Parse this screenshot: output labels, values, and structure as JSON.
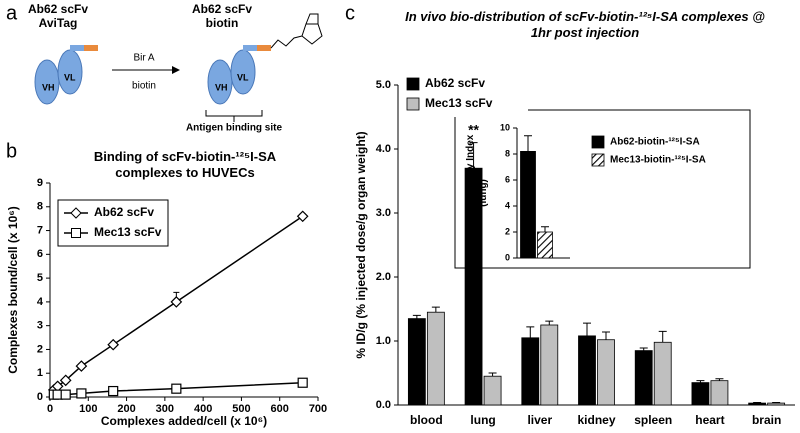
{
  "panel_labels": [
    "a",
    "b",
    "c"
  ],
  "diagram": {
    "left_label": "Ab62 scFv AviTag",
    "right_label": "Ab62 scFv biotin",
    "enzyme": "Bir A",
    "substrate": "biotin",
    "vh": "VH",
    "vl": "VL",
    "vh2": "VH",
    "vl2": "VL",
    "site": "Antigen binding site"
  },
  "chart_data": [
    {
      "type": "line",
      "title": "Binding of scFv-biotin-¹²⁵I-SA complexes to HUVECs",
      "xlabel": "Complexes added/cell (x 10⁶)",
      "ylabel": "Complexes bound/cell (x 10⁶)",
      "x": [
        10,
        20,
        41,
        82,
        165,
        330,
        660
      ],
      "series": [
        {
          "name": "Ab62 scFv",
          "color": "#000000",
          "marker": "diamond",
          "values": [
            0.3,
            0.45,
            0.7,
            1.3,
            2.2,
            4.0,
            7.6
          ],
          "errors": [
            0.05,
            0.05,
            0.05,
            0.1,
            0.1,
            0.4,
            0.1
          ]
        },
        {
          "name": "Mec13 scFv",
          "color": "#000000",
          "marker": "square",
          "values": [
            0.1,
            0.1,
            0.1,
            0.15,
            0.25,
            0.35,
            0.6
          ],
          "errors": [
            0.02,
            0.02,
            0.02,
            0.03,
            0.05,
            0.05,
            0.05
          ]
        }
      ],
      "xlim": [
        0,
        700
      ],
      "xticks": [
        0,
        100,
        200,
        300,
        400,
        500,
        600,
        700
      ],
      "ylim": [
        0,
        9
      ],
      "yticks": [
        0,
        1,
        2,
        3,
        4,
        5,
        6,
        7,
        8,
        9
      ],
      "legend": "upper left"
    },
    {
      "type": "bar",
      "title": "In vivo bio-distribution of scFv-biotin-¹²⁵I-SA complexes @ 1hr post injection",
      "ylabel": "% ID/g (% injected dose/g organ weight)",
      "categories": [
        "blood",
        "lung",
        "liver",
        "kidney",
        "spleen",
        "heart",
        "brain"
      ],
      "series": [
        {
          "name": "Ab62 scFv",
          "color": "#000000",
          "values": [
            1.35,
            3.7,
            1.05,
            1.08,
            0.85,
            0.35,
            0.03
          ],
          "errors": [
            0.05,
            0.4,
            0.17,
            0.2,
            0.04,
            0.03,
            0.01
          ]
        },
        {
          "name": "Mec13 scFv",
          "color": "#bfbfbf",
          "values": [
            1.45,
            0.45,
            1.25,
            1.02,
            0.98,
            0.38,
            0.03
          ],
          "errors": [
            0.08,
            0.05,
            0.06,
            0.12,
            0.17,
            0.03,
            0.01
          ]
        }
      ],
      "annotation": "**",
      "ylim": [
        0,
        5
      ],
      "yticks": [
        {
          "value": 0,
          "label": "0.0"
        },
        {
          "value": 1,
          "label": "1.0"
        },
        {
          "value": 2,
          "label": "2.0"
        },
        {
          "value": 3,
          "label": "3.0"
        },
        {
          "value": 4,
          "label": "4.0"
        },
        {
          "value": 5,
          "label": "5.0"
        }
      ],
      "legend": "upper left"
    },
    {
      "type": "bar",
      "ylabel": "Immunospecificity Index (lung)",
      "categories": [
        null
      ],
      "series": [
        {
          "name": "Ab62-biotin-¹²⁵I-SA",
          "color": "#000000",
          "pattern": "solid",
          "values": [
            8.2
          ],
          "errors": [
            1.2
          ]
        },
        {
          "name": "Mec13-biotin-¹²⁵I-SA",
          "color": "#000000",
          "pattern": "hatch",
          "values": [
            2.0
          ],
          "errors": [
            0.4
          ]
        }
      ],
      "ylim": [
        0,
        10
      ],
      "yticks": [
        0,
        2,
        4,
        6,
        8,
        10
      ],
      "legend": "upper right"
    }
  ]
}
